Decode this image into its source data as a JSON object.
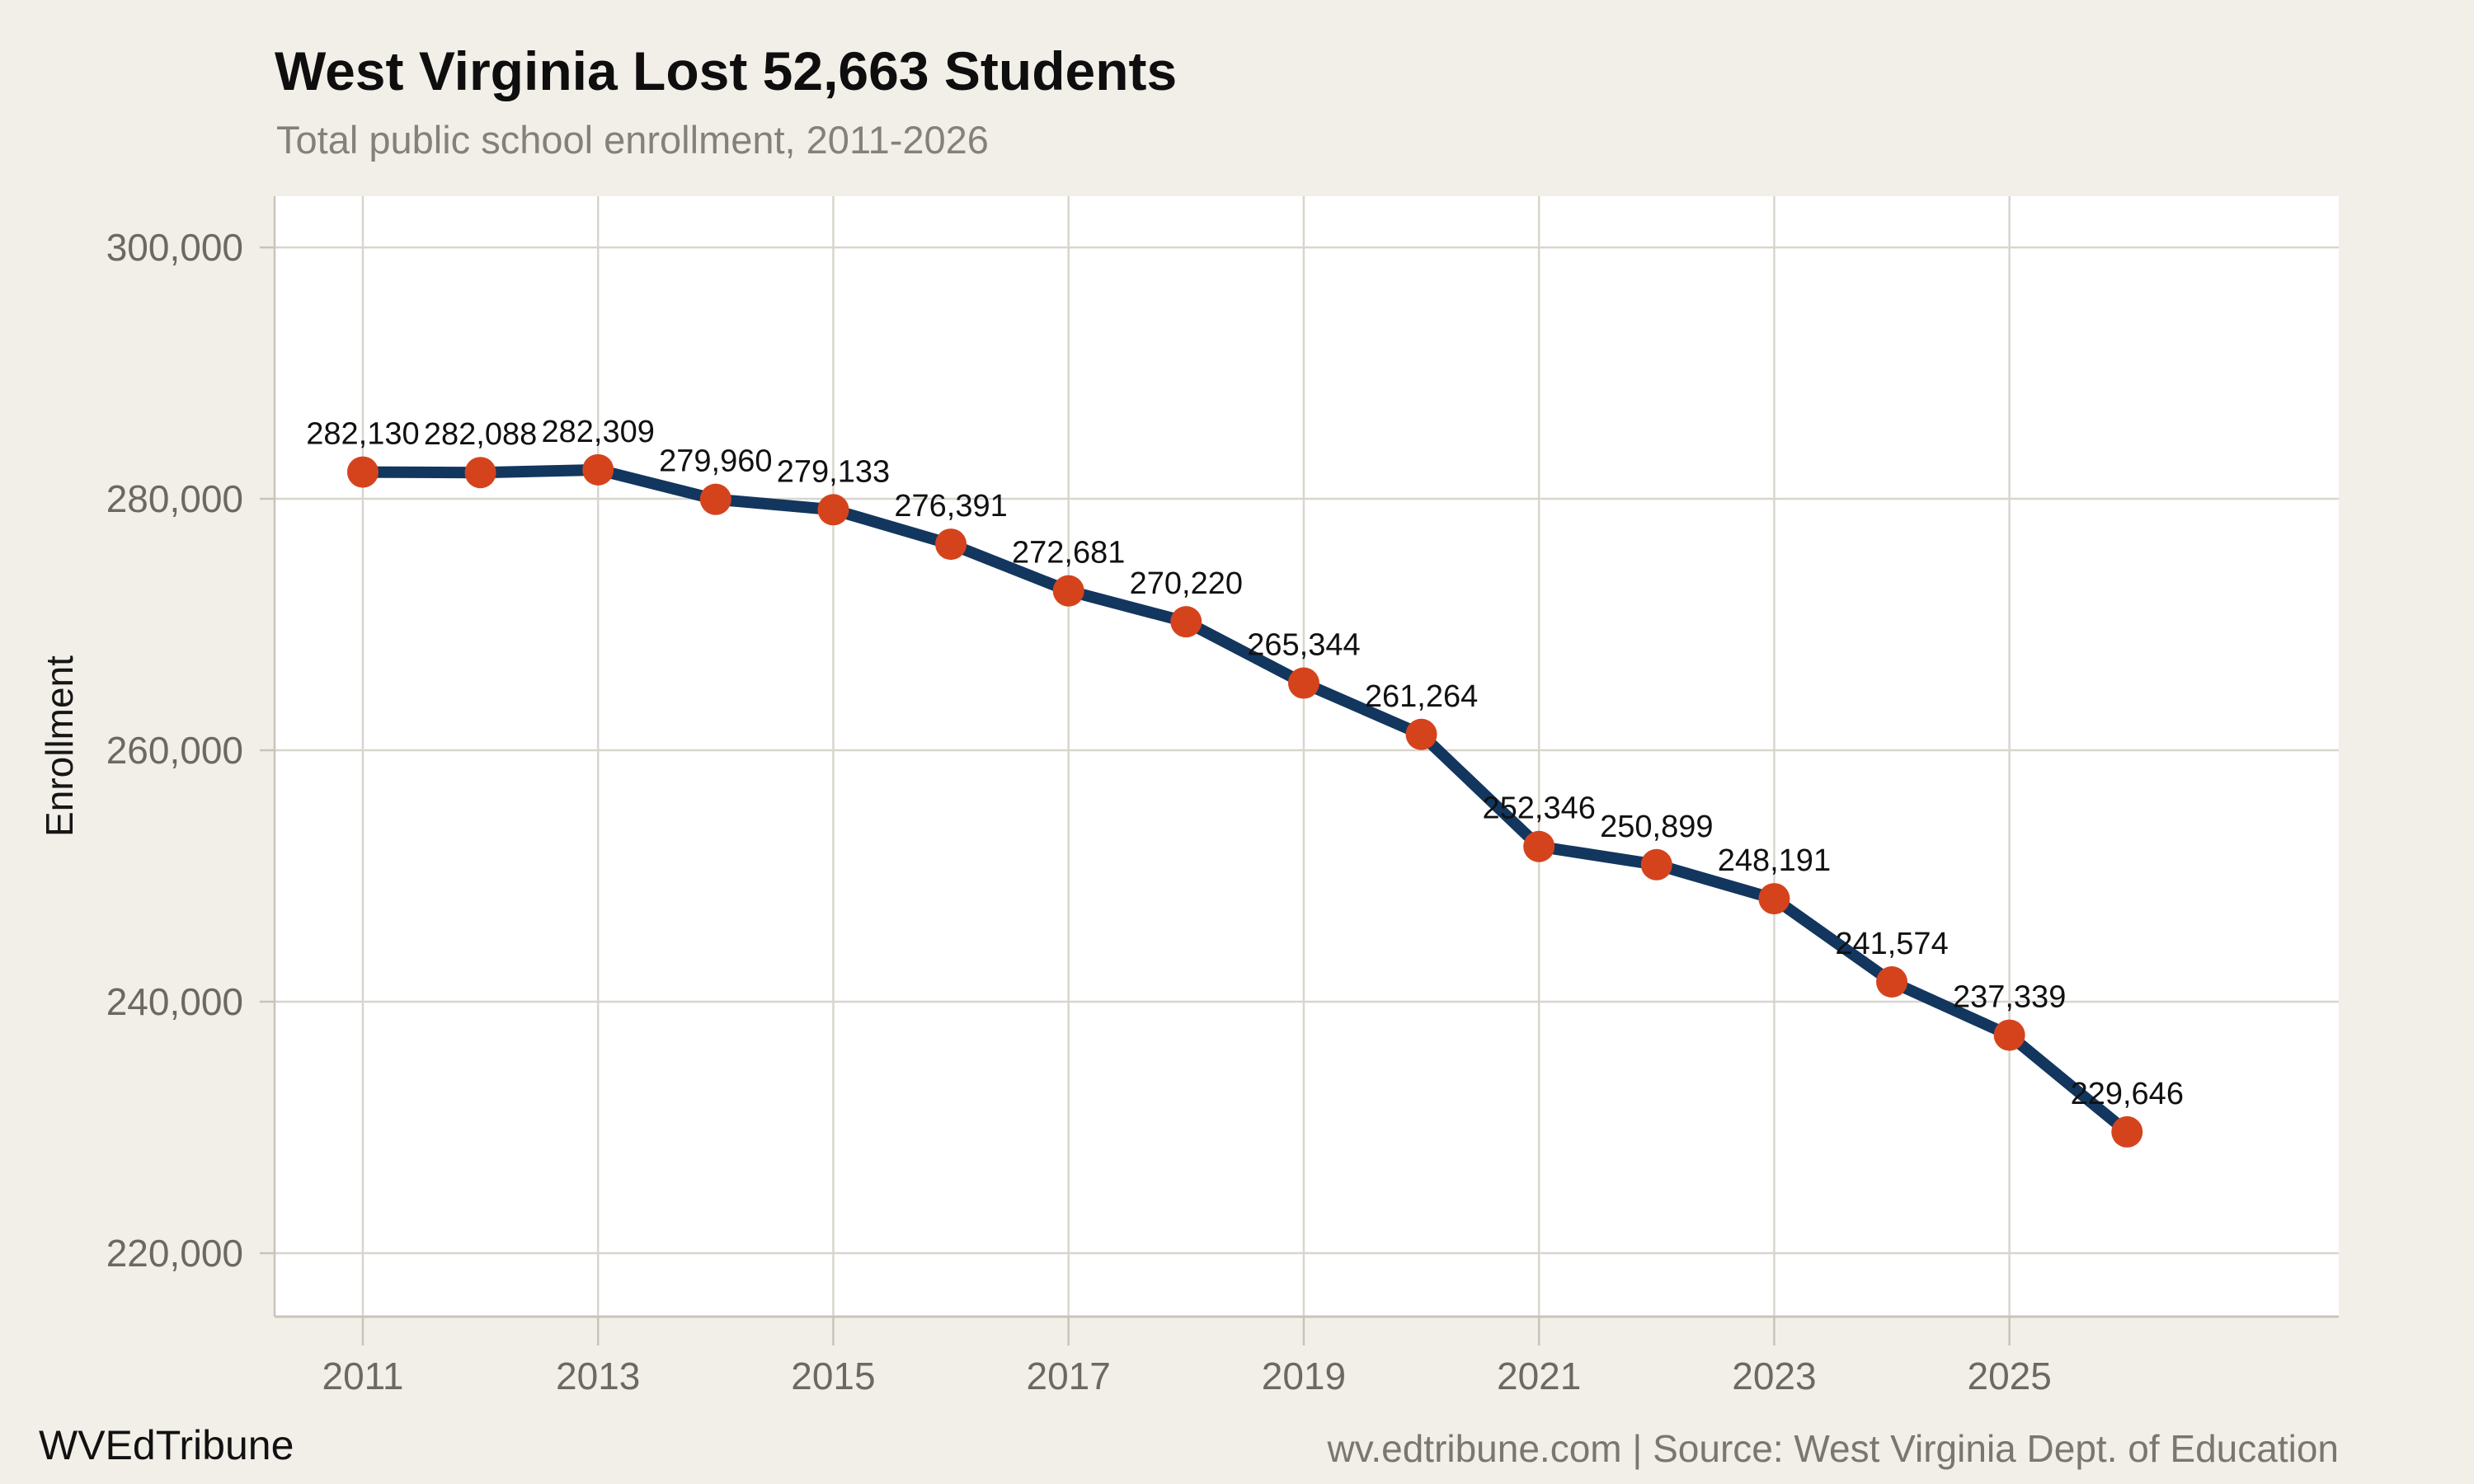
{
  "header": {
    "title": "West Virginia Lost 52,663 Students",
    "subtitle": "Total public school enrollment, 2011-2026"
  },
  "footer": {
    "brand": "WVEdTribune",
    "source": "wv.edtribune.com | Source: West Virginia Dept. of Education"
  },
  "colors": {
    "background": "#f2efe9",
    "plot_background": "#ffffff",
    "gridline": "#d9d5cd",
    "axis_line": "#c9c3b9",
    "tick_mark": "#c9c3b9",
    "tick_label": "#6d6862",
    "line": "#12365e",
    "marker": "#d5431d",
    "data_label": "#111111",
    "title": "#0e0e0e",
    "subtitle": "#85807a",
    "footer_source": "#7b766f"
  },
  "chart_data": {
    "type": "line",
    "title": "West Virginia Lost 52,663 Students",
    "subtitle": "Total public school enrollment, 2011-2026",
    "xlabel": "",
    "ylabel": "Enrollment",
    "x": [
      2011,
      2012,
      2013,
      2014,
      2015,
      2016,
      2017,
      2018,
      2019,
      2020,
      2021,
      2022,
      2023,
      2024,
      2025,
      2026
    ],
    "series": [
      {
        "name": "Total public school enrollment",
        "values": [
          282130,
          282088,
          282309,
          279960,
          279133,
          276391,
          272681,
          270220,
          265344,
          261264,
          252346,
          250899,
          248191,
          241574,
          237339,
          229646
        ],
        "value_labels": [
          "282,130",
          "282,088",
          "282,309",
          "279,960",
          "279,133",
          "276,391",
          "272,681",
          "270,220",
          "265,344",
          "261,264",
          "252,346",
          "250,899",
          "248,191",
          "241,574",
          "237,339",
          "229,646"
        ]
      }
    ],
    "x_ticks": [
      2011,
      2013,
      2015,
      2017,
      2019,
      2021,
      2023,
      2025
    ],
    "y_ticks": [
      220000,
      240000,
      260000,
      280000,
      300000
    ],
    "y_tick_labels": [
      "220,000",
      "240,000",
      "260,000",
      "280,000",
      "300,000"
    ],
    "xlim": [
      2010.25,
      2027.8
    ],
    "ylim": [
      214950,
      304070
    ],
    "grid": true,
    "legend": false,
    "point_markers": true
  }
}
